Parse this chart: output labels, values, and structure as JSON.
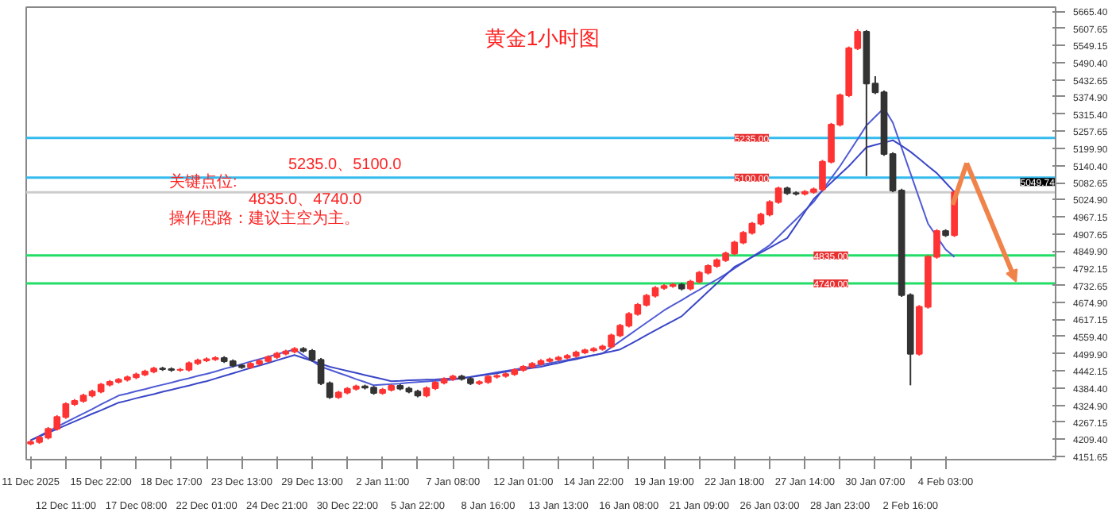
{
  "chart_data": {
    "type": "candlestick",
    "title": "黄金1小时图",
    "categories": [
      "11 Dec 2025",
      null,
      null,
      null,
      "12 Dec 11:00",
      null,
      null,
      null,
      "15 Dec 22:00",
      null,
      null,
      null,
      "17 Dec 08:00",
      null,
      null,
      null,
      "18 Dec 17:00",
      null,
      null,
      null,
      "22 Dec 01:00",
      null,
      null,
      null,
      "23 Dec 13:00",
      null,
      null,
      null,
      "24 Dec 21:00",
      null,
      null,
      null,
      "29 Dec 13:00",
      null,
      null,
      null,
      "30 Dec 22:00",
      null,
      null,
      null,
      "2 Jan 11:00",
      null,
      null,
      null,
      "5 Jan 22:00",
      null,
      null,
      null,
      "7 Jan 08:00",
      null,
      null,
      null,
      "8 Jan 16:00",
      null,
      null,
      null,
      "12 Jan 01:00",
      null,
      null,
      null,
      "13 Jan 13:00",
      null,
      null,
      null,
      "14 Jan 22:00",
      null,
      null,
      null,
      "16 Jan 08:00",
      null,
      null,
      null,
      "19 Jan 19:00",
      null,
      null,
      null,
      "21 Jan 09:00",
      null,
      null,
      null,
      "22 Jan 18:00",
      null,
      null,
      null,
      "26 Jan 03:00",
      null,
      null,
      null,
      "27 Jan 14:00",
      null,
      null,
      null,
      "28 Jan 23:00",
      null,
      null,
      null,
      "30 Jan 07:00",
      null,
      null,
      null,
      "2 Feb 16:00",
      null,
      null,
      null,
      "4 Feb 03:00",
      null,
      null,
      null,
      null,
      null,
      null,
      null,
      null,
      null,
      null,
      null,
      null
    ],
    "ohlc": [
      [
        4195,
        4206,
        4189,
        4200
      ],
      [
        4200,
        4221,
        4194,
        4215
      ],
      [
        4215,
        4251,
        4209,
        4245
      ],
      [
        4245,
        4291,
        4239,
        4285
      ],
      [
        4285,
        4335,
        4279,
        4329
      ],
      [
        4329,
        4346,
        4323,
        4340
      ],
      [
        4340,
        4364,
        4334,
        4358
      ],
      [
        4358,
        4378,
        4352,
        4372
      ],
      [
        4372,
        4401,
        4366,
        4395
      ],
      [
        4395,
        4411,
        4389,
        4405
      ],
      [
        4405,
        4418,
        4399,
        4412
      ],
      [
        4412,
        4426,
        4406,
        4420
      ],
      [
        4420,
        4436,
        4414,
        4430
      ],
      [
        4430,
        4446,
        4424,
        4440
      ],
      [
        4440,
        4456,
        4434,
        4450
      ],
      [
        4450,
        4456,
        4442,
        4448
      ],
      [
        4448,
        4454,
        4439,
        4445
      ],
      [
        4445,
        4452,
        4439,
        4446
      ],
      [
        4446,
        4474,
        4440,
        4468
      ],
      [
        4468,
        4484,
        4462,
        4478
      ],
      [
        4478,
        4488,
        4472,
        4482
      ],
      [
        4482,
        4492,
        4476,
        4486
      ],
      [
        4486,
        4492,
        4469,
        4475
      ],
      [
        4475,
        4481,
        4454,
        4460
      ],
      [
        4460,
        4466,
        4449,
        4455
      ],
      [
        4455,
        4472,
        4449,
        4466
      ],
      [
        4466,
        4482,
        4460,
        4476
      ],
      [
        4476,
        4495,
        4470,
        4489
      ],
      [
        4489,
        4507,
        4483,
        4501
      ],
      [
        4501,
        4514,
        4495,
        4508
      ],
      [
        4508,
        4523,
        4502,
        4517
      ],
      [
        4517,
        4523,
        4504,
        4510
      ],
      [
        4510,
        4516,
        4474,
        4480
      ],
      [
        4480,
        4486,
        4394,
        4400
      ],
      [
        4400,
        4406,
        4347,
        4353
      ],
      [
        4353,
        4374,
        4347,
        4368
      ],
      [
        4368,
        4387,
        4362,
        4381
      ],
      [
        4381,
        4395,
        4375,
        4389
      ],
      [
        4389,
        4395,
        4379,
        4385
      ],
      [
        4385,
        4391,
        4361,
        4367
      ],
      [
        4367,
        4384,
        4361,
        4378
      ],
      [
        4378,
        4397,
        4372,
        4391
      ],
      [
        4391,
        4397,
        4376,
        4382
      ],
      [
        4382,
        4388,
        4366,
        4372
      ],
      [
        4372,
        4378,
        4352,
        4358
      ],
      [
        4358,
        4389,
        4352,
        4383
      ],
      [
        4383,
        4408,
        4377,
        4402
      ],
      [
        4402,
        4420,
        4396,
        4414
      ],
      [
        4414,
        4429,
        4408,
        4423
      ],
      [
        4423,
        4429,
        4409,
        4415
      ],
      [
        4415,
        4421,
        4394,
        4400
      ],
      [
        4400,
        4410,
        4394,
        4404
      ],
      [
        4404,
        4428,
        4398,
        4422
      ],
      [
        4422,
        4431,
        4416,
        4425
      ],
      [
        4425,
        4437,
        4419,
        4431
      ],
      [
        4431,
        4451,
        4425,
        4445
      ],
      [
        4445,
        4462,
        4439,
        4456
      ],
      [
        4456,
        4472,
        4450,
        4466
      ],
      [
        4466,
        4482,
        4460,
        4476
      ],
      [
        4476,
        4487,
        4470,
        4481
      ],
      [
        4481,
        4493,
        4475,
        4487
      ],
      [
        4487,
        4499,
        4481,
        4493
      ],
      [
        4493,
        4511,
        4487,
        4505
      ],
      [
        4505,
        4518,
        4499,
        4512
      ],
      [
        4512,
        4523,
        4506,
        4517
      ],
      [
        4517,
        4531,
        4511,
        4525
      ],
      [
        4525,
        4569,
        4519,
        4563
      ],
      [
        4563,
        4602,
        4557,
        4596
      ],
      [
        4596,
        4642,
        4590,
        4636
      ],
      [
        4636,
        4673,
        4630,
        4667
      ],
      [
        4667,
        4704,
        4661,
        4698
      ],
      [
        4698,
        4730,
        4692,
        4724
      ],
      [
        4724,
        4737,
        4718,
        4731
      ],
      [
        4731,
        4741,
        4725,
        4735
      ],
      [
        4735,
        4741,
        4716,
        4722
      ],
      [
        4722,
        4752,
        4716,
        4746
      ],
      [
        4746,
        4782,
        4740,
        4776
      ],
      [
        4776,
        4805,
        4770,
        4799
      ],
      [
        4799,
        4825,
        4793,
        4819
      ],
      [
        4819,
        4848,
        4813,
        4842
      ],
      [
        4842,
        4885,
        4836,
        4879
      ],
      [
        4879,
        4918,
        4873,
        4912
      ],
      [
        4912,
        4949,
        4906,
        4943
      ],
      [
        4943,
        4980,
        4937,
        4974
      ],
      [
        4974,
        5023,
        4968,
        5017
      ],
      [
        5017,
        5069,
        5011,
        5063
      ],
      [
        5063,
        5069,
        5041,
        5047
      ],
      [
        5047,
        5053,
        5039,
        5045
      ],
      [
        5045,
        5057,
        5039,
        5051
      ],
      [
        5051,
        5066,
        5045,
        5060
      ],
      [
        5060,
        5160,
        5054,
        5154
      ],
      [
        5154,
        5286,
        5148,
        5280
      ],
      [
        5280,
        5386,
        5274,
        5380
      ],
      [
        5380,
        5546,
        5374,
        5540
      ],
      [
        5540,
        5605,
        5534,
        5596
      ],
      [
        5596,
        5602,
        5105,
        5420
      ],
      [
        5420,
        5445,
        5384,
        5390
      ],
      [
        5390,
        5396,
        5174,
        5180
      ],
      [
        5180,
        5186,
        5050,
        5056
      ],
      [
        5056,
        5062,
        4694,
        4700
      ],
      [
        4700,
        4706,
        4393,
        4500
      ],
      [
        4500,
        4666,
        4494,
        4660
      ],
      [
        4660,
        4836,
        4654,
        4830
      ],
      [
        4830,
        4924,
        4824,
        4918
      ],
      [
        4918,
        4924,
        4898,
        4904
      ],
      [
        4904,
        5056,
        4898,
        5049.74
      ],
      null,
      null,
      null,
      null,
      null,
      null,
      null,
      null,
      null,
      null,
      null
    ],
    "series": [
      {
        "type": "line",
        "color": "#4f5bd5",
        "values": [
          4206,
          4221,
          4236,
          4252,
          4267,
          4282,
          4297,
          4312,
          4328,
          4343,
          4358,
          4365,
          4373,
          4380,
          4388,
          4395,
          4402,
          4410,
          4417,
          4425,
          4432,
          4440,
          4449,
          4457,
          4465,
          4474,
          4482,
          4490,
          4499,
          4507,
          4515,
          4495,
          4476,
          4456,
          4446,
          4435,
          4425,
          4414,
          4404,
          4393,
          4395,
          4397,
          4399,
          4402,
          4404,
          4406,
          4408,
          4410,
          4412,
          4417,
          4422,
          4427,
          4432,
          4437,
          4442,
          4447,
          4452,
          4457,
          4463,
          4468,
          4474,
          4479,
          4485,
          4490,
          4496,
          4501,
          4522,
          4543,
          4564,
          4585,
          4606,
          4627,
          4648,
          4666,
          4683,
          4701,
          4718,
          4736,
          4753,
          4771,
          4791,
          4811,
          4830,
          4850,
          4870,
          4899,
          4929,
          4958,
          4988,
          5017,
          5058,
          5098,
          5139,
          5185,
          5231,
          5277,
          5307,
          5336,
          5287,
          5201,
          5115,
          5029,
          4943,
          4899,
          4855,
          4830,
          null,
          null,
          null,
          null,
          null,
          null,
          null,
          null,
          null,
          null,
          null
        ]
      },
      {
        "type": "line",
        "color": "#3a46c8",
        "values": [
          4206,
          4219,
          4232,
          4244,
          4257,
          4270,
          4283,
          4296,
          4308,
          4321,
          4334,
          4341,
          4349,
          4356,
          4363,
          4371,
          4378,
          4385,
          4392,
          4400,
          4407,
          4416,
          4425,
          4434,
          4443,
          4452,
          4460,
          4469,
          4478,
          4487,
          4496,
          4486,
          4476,
          4466,
          4456,
          4449,
          4442,
          4435,
          4428,
          4421,
          4414,
          4407,
          4408,
          4410,
          4411,
          4412,
          4413,
          4415,
          4416,
          4417,
          4421,
          4426,
          4430,
          4434,
          4439,
          4443,
          4447,
          4452,
          4456,
          4463,
          4469,
          4476,
          4482,
          4489,
          4495,
          4502,
          4508,
          4515,
          4531,
          4547,
          4564,
          4580,
          4596,
          4612,
          4628,
          4656,
          4684,
          4712,
          4740,
          4768,
          4796,
          4812,
          4829,
          4845,
          4861,
          4878,
          4894,
          4938,
          4983,
          5027,
          5055,
          5083,
          5111,
          5139,
          5171,
          5203,
          5211,
          5219,
          5227,
          5208,
          5188,
          5164,
          5139,
          5115,
          5083,
          5051,
          null,
          null,
          null,
          null,
          null,
          null,
          null,
          null,
          null,
          null,
          null
        ]
      }
    ],
    "ylim": [
      4140,
      5680
    ],
    "yticks": [
      {
        "value": 5665.4,
        "label": "5665.40"
      },
      {
        "value": 5607.65,
        "label": "5607.65"
      },
      {
        "value": 5549.15,
        "label": "5549.15"
      },
      {
        "value": 5490.4,
        "label": "5490.40"
      },
      {
        "value": 5432.65,
        "label": "5432.65"
      },
      {
        "value": 5374.9,
        "label": "5374.90"
      },
      {
        "value": 5315.4,
        "label": "5315.40"
      },
      {
        "value": 5257.65,
        "label": "5257.65"
      },
      {
        "value": 5199.9,
        "label": "5199.90"
      },
      {
        "value": 5140.4,
        "label": "5140.40"
      },
      {
        "value": 5082.65,
        "label": "5082.65"
      },
      {
        "value": 5024.9,
        "label": "5024.90"
      },
      {
        "value": 4967.15,
        "label": "4967.15"
      },
      {
        "value": 4907.65,
        "label": "4907.65"
      },
      {
        "value": 4849.9,
        "label": "4849.90"
      },
      {
        "value": 4792.15,
        "label": "4792.15"
      },
      {
        "value": 4732.65,
        "label": "4732.65"
      },
      {
        "value": 4674.9,
        "label": "4674.90"
      },
      {
        "value": 4617.15,
        "label": "4617.15"
      },
      {
        "value": 4559.4,
        "label": "4559.40"
      },
      {
        "value": 4499.9,
        "label": "4499.90"
      },
      {
        "value": 4442.15,
        "label": "4442.15"
      },
      {
        "value": 4384.4,
        "label": "4384.40"
      },
      {
        "value": 4324.9,
        "label": "4324.90"
      },
      {
        "value": 4267.15,
        "label": "4267.15"
      },
      {
        "value": 4209.4,
        "label": "4209.40"
      },
      {
        "value": 4151.65,
        "label": "4151.65"
      }
    ],
    "ref_lines": [
      {
        "axis": "y",
        "value": 5235.0,
        "label": "5235.00",
        "color": "#33bbee"
      },
      {
        "axis": "y",
        "value": 5100.0,
        "label": "5100.00",
        "color": "#33bbee"
      },
      {
        "axis": "y",
        "value": 4835.0,
        "label": "4835.00",
        "color": "#22dd66"
      },
      {
        "axis": "y",
        "value": 4740.0,
        "label": "4740.00",
        "color": "#22dd66"
      },
      {
        "axis": "y",
        "value": 5049.74,
        "label": "5049.74",
        "color": "#cccccc"
      }
    ],
    "annotations": [
      "5235.0、5100.0",
      "关键点位:",
      "4835.0、4740.0",
      "操作思路：建议主空为主。"
    ],
    "grid": false
  }
}
